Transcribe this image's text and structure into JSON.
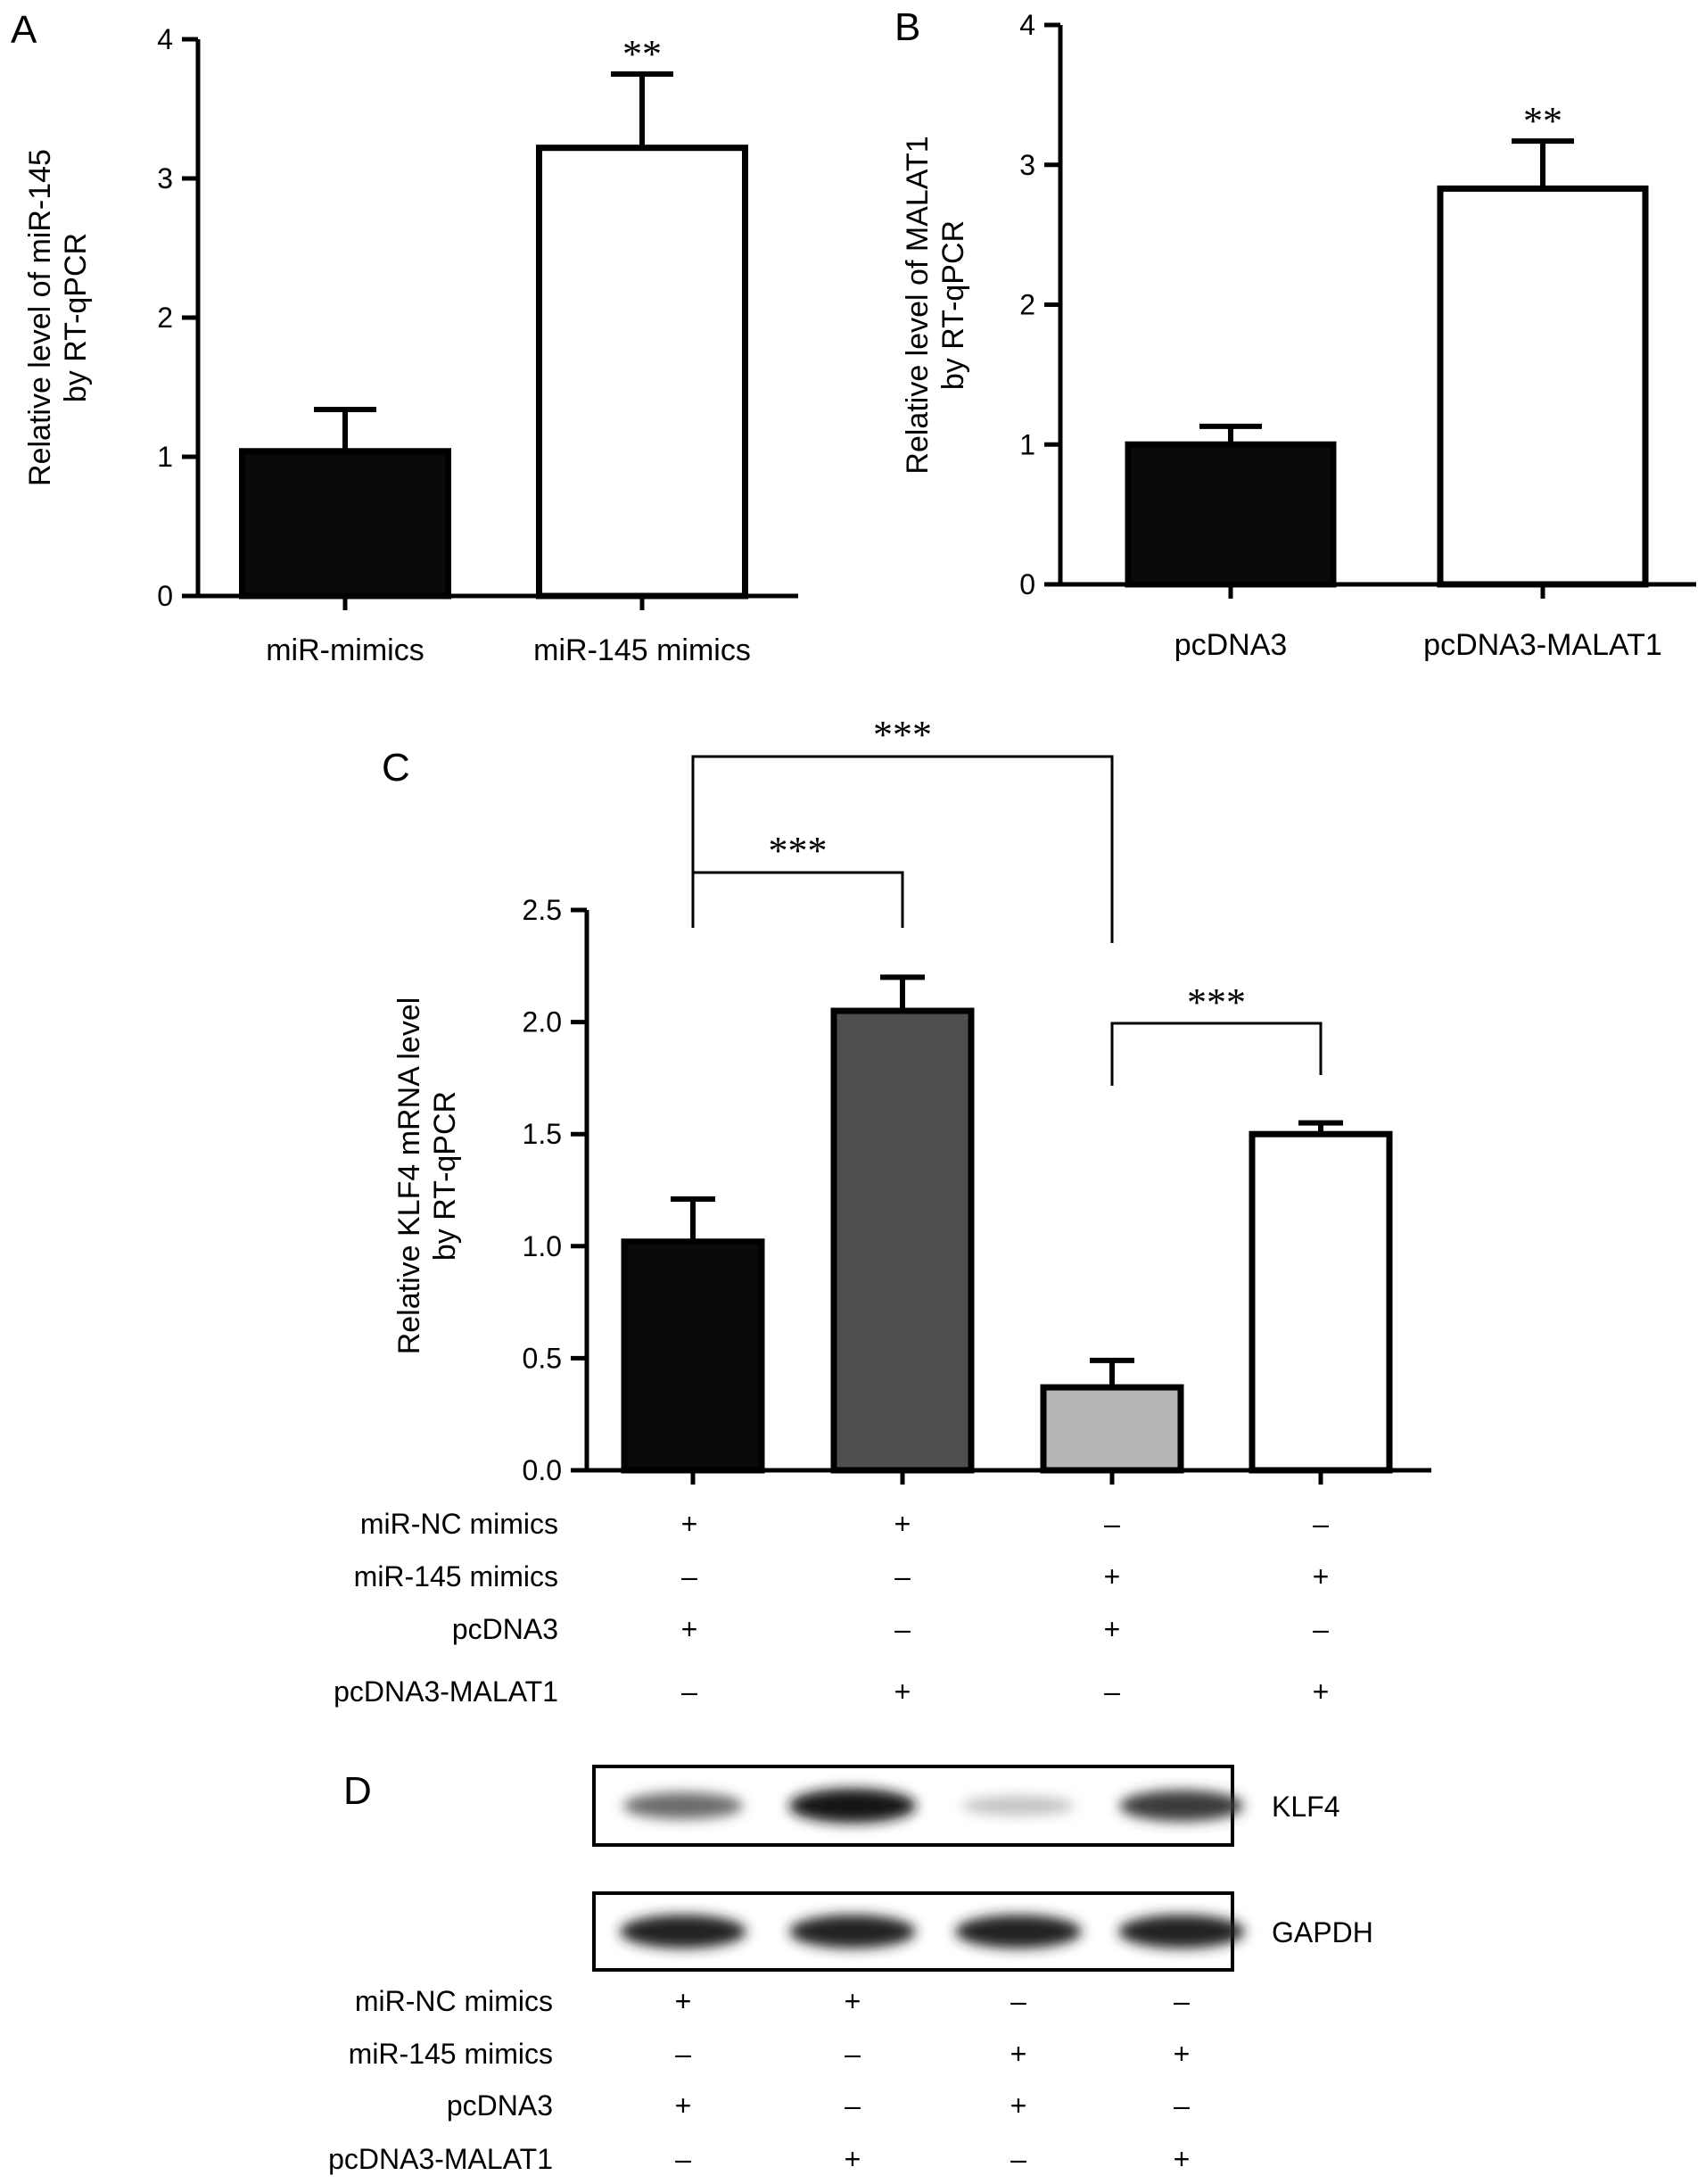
{
  "colors": {
    "black": "#0a0a0a",
    "dark_gray": "#4f4f4f",
    "light_gray": "#b5b5b5",
    "white": "#ffffff"
  },
  "panels": {
    "A": {
      "label": "A"
    },
    "B": {
      "label": "B"
    },
    "C": {
      "label": "C"
    },
    "D": {
      "label": "D"
    }
  },
  "chart_data": [
    {
      "id": "A",
      "type": "bar",
      "ylabel_lines": [
        "Relative level of miR-145",
        "by RT-qPCR"
      ],
      "ylim": [
        0,
        4
      ],
      "yticks": [
        "0",
        "1",
        "2",
        "3",
        "4"
      ],
      "ytick_values": [
        0,
        1,
        2,
        3,
        4
      ],
      "categories": [
        "miR-mimics",
        "miR-145 mimics"
      ],
      "values": [
        1.04,
        3.22
      ],
      "errors": [
        0.3,
        0.53
      ],
      "bar_colors": [
        "#0a0a0a",
        "#ffffff"
      ],
      "annotations": [
        {
          "category": 1,
          "text": "**"
        }
      ]
    },
    {
      "id": "B",
      "type": "bar",
      "ylabel_lines": [
        "Relative level of MALAT1",
        "by RT-qPCR"
      ],
      "ylim": [
        0,
        4
      ],
      "yticks": [
        "0",
        "1",
        "2",
        "3",
        "4"
      ],
      "ytick_values": [
        0,
        1,
        2,
        3,
        4
      ],
      "categories": [
        "pcDNA3",
        "pcDNA3-MALAT1"
      ],
      "values": [
        1.0,
        2.83
      ],
      "errors": [
        0.13,
        0.34
      ],
      "bar_colors": [
        "#0a0a0a",
        "#ffffff"
      ],
      "annotations": [
        {
          "category": 1,
          "text": "**"
        }
      ]
    },
    {
      "id": "C",
      "type": "bar",
      "ylabel_lines": [
        "Relative KLF4 mRNA level",
        "by RT-qPCR"
      ],
      "ylim": [
        0,
        2.5
      ],
      "yticks": [
        "0.0",
        "0.5",
        "1.0",
        "1.5",
        "2.0",
        "2.5"
      ],
      "ytick_values": [
        0,
        0.5,
        1.0,
        1.5,
        2.0,
        2.5
      ],
      "categories": [
        "",
        "",
        "",
        ""
      ],
      "values": [
        1.02,
        2.05,
        0.37,
        1.5
      ],
      "errors": [
        0.19,
        0.15,
        0.12,
        0.05
      ],
      "bar_colors": [
        "#0a0a0a",
        "#4f4f4f",
        "#b5b5b5",
        "#ffffff"
      ],
      "brackets": [
        {
          "from": 0,
          "to": 1,
          "text": "***"
        },
        {
          "from": 0,
          "to": 2,
          "text": "***"
        },
        {
          "from": 2,
          "to": 3,
          "text": "***"
        }
      ]
    }
  ],
  "conditions": {
    "rows": [
      "miR-NC mimics",
      "miR-145 mimics",
      "pcDNA3",
      "pcDNA3-MALAT1"
    ],
    "matrix": [
      [
        "+",
        "+",
        "–",
        "–"
      ],
      [
        "–",
        "–",
        "+",
        "+"
      ],
      [
        "+",
        "–",
        "+",
        "–"
      ],
      [
        "–",
        "+",
        "–",
        "+"
      ]
    ]
  },
  "blot": {
    "bands": [
      {
        "label": "KLF4",
        "intensities": [
          0.6,
          0.95,
          0.25,
          0.8
        ]
      },
      {
        "label": "GAPDH",
        "intensities": [
          0.9,
          0.9,
          0.9,
          0.9
        ]
      }
    ]
  }
}
